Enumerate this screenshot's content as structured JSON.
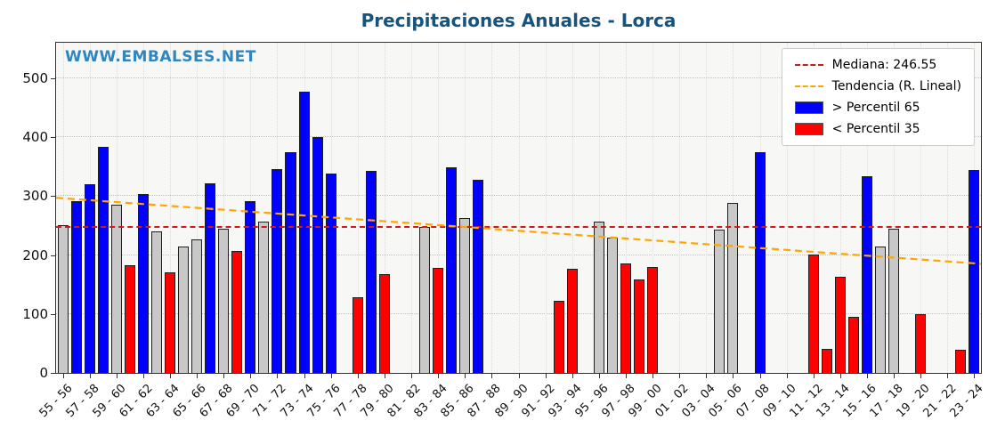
{
  "title": "Precipitaciones Anuales - Lorca",
  "watermark": "WWW.EMBALSES.NET",
  "legend": {
    "median_label": "Mediana: 246.55",
    "trend_label": "Tendencia (R. Lineal)",
    "above_label": "> Percentil 65",
    "below_label": "< Percentil 35"
  },
  "colors": {
    "above": "#0000ff",
    "below": "#ff0000",
    "mid": "#c8c8c8",
    "median": "#d01a1a",
    "trend": "#ffa500",
    "title": "#16537e",
    "watermark": "#2e86c1"
  },
  "chart_data": {
    "type": "bar",
    "title": "Precipitaciones Anuales - Lorca",
    "xlabel": "",
    "ylabel": "",
    "ylim": [
      0,
      560
    ],
    "yticks": [
      0,
      100,
      200,
      300,
      400,
      500
    ],
    "grid": true,
    "legend_position": "upper right",
    "median": 246.55,
    "trend": {
      "start": 297,
      "end": 185
    },
    "series": [
      {
        "label": "55 - 56",
        "value": 250,
        "band": "mid"
      },
      {
        "label": "56 - 57",
        "value": 292,
        "band": "above"
      },
      {
        "label": "57 - 58",
        "value": 320,
        "band": "above"
      },
      {
        "label": "58 - 59",
        "value": 383,
        "band": "above"
      },
      {
        "label": "59 - 60",
        "value": 285,
        "band": "mid"
      },
      {
        "label": "60 - 61",
        "value": 183,
        "band": "below"
      },
      {
        "label": "61 - 62",
        "value": 303,
        "band": "above"
      },
      {
        "label": "62 - 63",
        "value": 240,
        "band": "mid"
      },
      {
        "label": "63 - 64",
        "value": 170,
        "band": "below"
      },
      {
        "label": "64 - 65",
        "value": 215,
        "band": "mid"
      },
      {
        "label": "65 - 66",
        "value": 227,
        "band": "mid"
      },
      {
        "label": "66 - 67",
        "value": 322,
        "band": "above"
      },
      {
        "label": "67 - 68",
        "value": 244,
        "band": "mid"
      },
      {
        "label": "68 - 69",
        "value": 207,
        "band": "below"
      },
      {
        "label": "69 - 70",
        "value": 291,
        "band": "above"
      },
      {
        "label": "70 - 71",
        "value": 257,
        "band": "mid"
      },
      {
        "label": "71 - 72",
        "value": 345,
        "band": "above"
      },
      {
        "label": "72 - 73",
        "value": 375,
        "band": "above"
      },
      {
        "label": "73 - 74",
        "value": 477,
        "band": "above"
      },
      {
        "label": "74 - 75",
        "value": 400,
        "band": "above"
      },
      {
        "label": "75 - 76",
        "value": 338,
        "band": "above"
      },
      {
        "label": "76 - 77",
        "value": null,
        "band": null
      },
      {
        "label": "77 - 78",
        "value": 128,
        "band": "below"
      },
      {
        "label": "78 - 79",
        "value": 343,
        "band": "above"
      },
      {
        "label": "79 - 80",
        "value": 168,
        "band": "below"
      },
      {
        "label": "80 - 81",
        "value": null,
        "band": null
      },
      {
        "label": "81 - 82",
        "value": null,
        "band": null
      },
      {
        "label": "82 - 83",
        "value": 247,
        "band": "mid"
      },
      {
        "label": "83 - 84",
        "value": 178,
        "band": "below"
      },
      {
        "label": "84 - 85",
        "value": 348,
        "band": "above"
      },
      {
        "label": "85 - 86",
        "value": 263,
        "band": "mid"
      },
      {
        "label": "86 - 87",
        "value": 328,
        "band": "above"
      },
      {
        "label": "87 - 88",
        "value": null,
        "band": null
      },
      {
        "label": "88 - 89",
        "value": null,
        "band": null
      },
      {
        "label": "89 - 90",
        "value": null,
        "band": null
      },
      {
        "label": "90 - 91",
        "value": null,
        "band": null
      },
      {
        "label": "91 - 92",
        "value": null,
        "band": null
      },
      {
        "label": "92 - 93",
        "value": 122,
        "band": "below"
      },
      {
        "label": "93 - 94",
        "value": 176,
        "band": "below"
      },
      {
        "label": "94 - 95",
        "value": null,
        "band": null
      },
      {
        "label": "95 - 96",
        "value": 257,
        "band": "mid"
      },
      {
        "label": "96 - 97",
        "value": 230,
        "band": "mid"
      },
      {
        "label": "97 - 98",
        "value": 186,
        "band": "below"
      },
      {
        "label": "98 - 99",
        "value": 159,
        "band": "below"
      },
      {
        "label": "99 - 00",
        "value": 180,
        "band": "below"
      },
      {
        "label": "00 - 01",
        "value": null,
        "band": null
      },
      {
        "label": "01 - 02",
        "value": null,
        "band": null
      },
      {
        "label": "02 - 03",
        "value": null,
        "band": null
      },
      {
        "label": "03 - 04",
        "value": null,
        "band": null
      },
      {
        "label": "04 - 05",
        "value": 243,
        "band": "mid"
      },
      {
        "label": "05 - 06",
        "value": 288,
        "band": "mid"
      },
      {
        "label": "06 - 07",
        "value": null,
        "band": null
      },
      {
        "label": "07 - 08",
        "value": 375,
        "band": "above"
      },
      {
        "label": "08 - 09",
        "value": null,
        "band": null
      },
      {
        "label": "09 - 10",
        "value": null,
        "band": null
      },
      {
        "label": "10 - 11",
        "value": null,
        "band": null
      },
      {
        "label": "11 - 12",
        "value": 201,
        "band": "below"
      },
      {
        "label": "12 - 13",
        "value": 41,
        "band": "below"
      },
      {
        "label": "13 - 14",
        "value": 163,
        "band": "below"
      },
      {
        "label": "14 - 15",
        "value": 95,
        "band": "below"
      },
      {
        "label": "15 - 16",
        "value": 333,
        "band": "above"
      },
      {
        "label": "16 - 17",
        "value": 215,
        "band": "mid"
      },
      {
        "label": "17 - 18",
        "value": 245,
        "band": "mid"
      },
      {
        "label": "18 - 19",
        "value": null,
        "band": null
      },
      {
        "label": "19 - 20",
        "value": 99,
        "band": "below"
      },
      {
        "label": "20 - 21",
        "value": null,
        "band": null
      },
      {
        "label": "21 - 22",
        "value": null,
        "band": null
      },
      {
        "label": "22 - 23",
        "value": 39,
        "band": "below"
      },
      {
        "label": "23 - 24",
        "value": 344,
        "band": "above"
      }
    ]
  }
}
